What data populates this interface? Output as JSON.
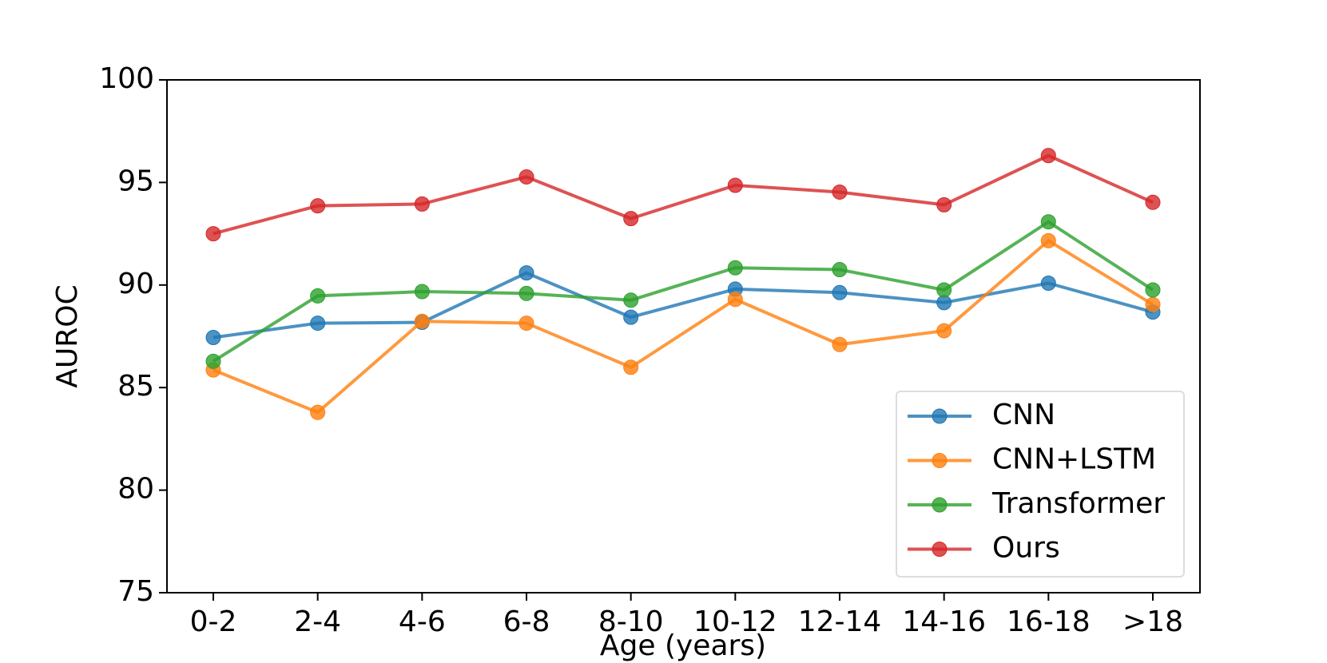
{
  "chart_data": {
    "type": "line",
    "x_label": "Age (years)",
    "y_label": "AUROC",
    "categories": [
      "0-2",
      "2-4",
      "4-6",
      "6-8",
      "8-10",
      "10-12",
      "12-14",
      "14-16",
      "16-18",
      ">18"
    ],
    "series": [
      {
        "name": "CNN",
        "color": "#1f77b4",
        "values": [
          87.44,
          88.14,
          88.18,
          90.59,
          88.43,
          89.8,
          89.63,
          89.14,
          90.09,
          88.68
        ]
      },
      {
        "name": "CNN+LSTM",
        "color": "#ff7f0e",
        "values": [
          85.86,
          83.79,
          88.23,
          88.14,
          85.99,
          89.3,
          87.1,
          87.77,
          92.16,
          89.05
        ]
      },
      {
        "name": "Transformer",
        "color": "#2ca02c",
        "values": [
          86.28,
          89.47,
          89.68,
          89.59,
          89.26,
          90.84,
          90.75,
          89.76,
          93.08,
          89.76
        ]
      },
      {
        "name": "Ours",
        "color": "#d62728",
        "values": [
          92.5,
          93.86,
          93.95,
          95.27,
          93.24,
          94.86,
          94.53,
          93.91,
          96.31,
          94.03
        ]
      }
    ],
    "ylim": [
      75,
      100
    ],
    "yticks": [
      75,
      80,
      85,
      90,
      95,
      100
    ],
    "legend": "lower right",
    "grid": false
  }
}
